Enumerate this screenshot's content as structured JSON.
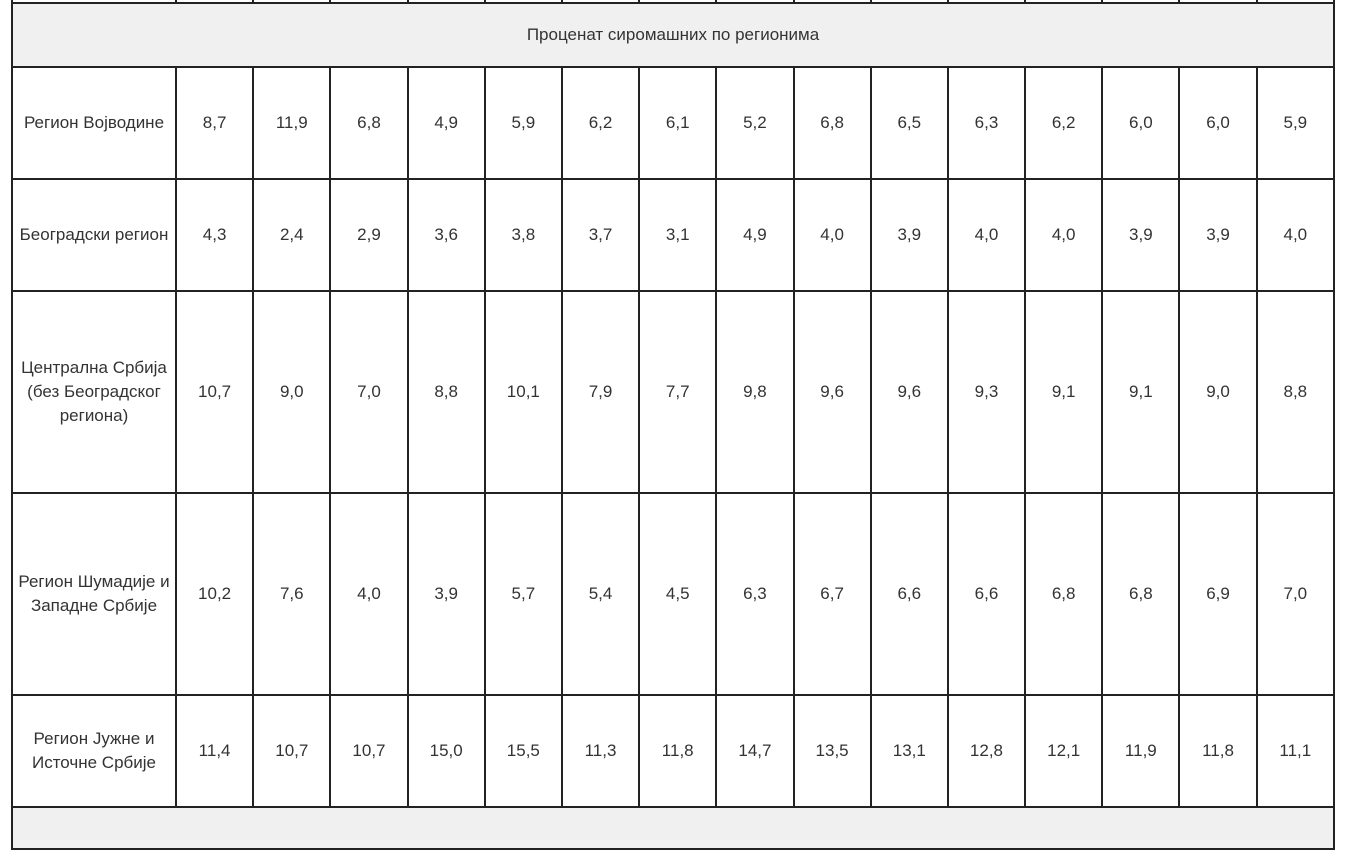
{
  "table": {
    "section_title": "Проценат сиромашних по регионима",
    "rows": [
      {
        "region": "Регион Војводине",
        "values": [
          "8,7",
          "11,9",
          "6,8",
          "4,9",
          "5,9",
          "6,2",
          "6,1",
          "5,2",
          "6,8",
          "6,5",
          "6,3",
          "6,2",
          "6,0",
          "6,0",
          "5,9"
        ]
      },
      {
        "region": "Београдски регион",
        "values": [
          "4,3",
          "2,4",
          "2,9",
          "3,6",
          "3,8",
          "3,7",
          "3,1",
          "4,9",
          "4,0",
          "3,9",
          "4,0",
          "4,0",
          "3,9",
          "3,9",
          "4,0"
        ]
      },
      {
        "region": "Централна Србија (без Београдског региона)",
        "values": [
          "10,7",
          "9,0",
          "7,0",
          "8,8",
          "10,1",
          "7,9",
          "7,7",
          "9,8",
          "9,6",
          "9,6",
          "9,3",
          "9,1",
          "9,1",
          "9,0",
          "8,8"
        ]
      },
      {
        "region": "Регион Шумадије и Западне Србије",
        "values": [
          "10,2",
          "7,6",
          "4,0",
          "3,9",
          "5,7",
          "5,4",
          "4,5",
          "6,3",
          "6,7",
          "6,6",
          "6,6",
          "6,8",
          "6,8",
          "6,9",
          "7,0"
        ]
      },
      {
        "region": "Регион Јужне и Источне Србије",
        "values": [
          "11,4",
          "10,7",
          "10,7",
          "15,0",
          "15,5",
          "11,3",
          "11,8",
          "14,7",
          "13,5",
          "13,1",
          "12,8",
          "12,1",
          "11,9",
          "11,8",
          "11,1"
        ]
      }
    ]
  }
}
